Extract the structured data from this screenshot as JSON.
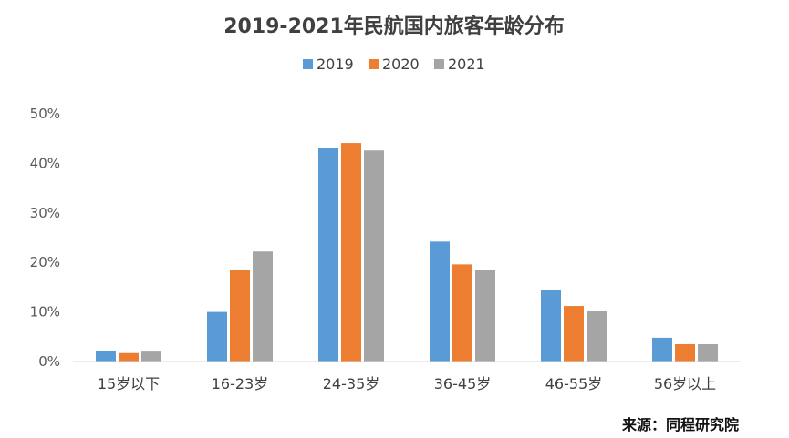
{
  "chart_data": {
    "type": "bar",
    "title": "2019-2021年民航国内旅客年龄分布",
    "categories": [
      "15岁以下",
      "16-23岁",
      "24-35岁",
      "36-45岁",
      "46-55岁",
      "56岁以上"
    ],
    "series": [
      {
        "name": "2019",
        "color": "#5B9BD5",
        "values": [
          2.2,
          10.0,
          43.2,
          24.2,
          14.4,
          4.8
        ]
      },
      {
        "name": "2020",
        "color": "#ED7D31",
        "values": [
          1.7,
          18.5,
          44.1,
          19.6,
          11.2,
          3.5
        ]
      },
      {
        "name": "2021",
        "color": "#A5A5A5",
        "values": [
          2.0,
          22.2,
          42.6,
          18.5,
          10.3,
          3.5
        ]
      }
    ],
    "ylim": [
      0,
      50
    ],
    "yticks": [
      0,
      10,
      20,
      30,
      40,
      50
    ],
    "ytick_labels": [
      "0%",
      "10%",
      "20%",
      "30%",
      "40%",
      "50%"
    ],
    "unit": "%",
    "legend_position": "top-center",
    "grid": false,
    "source": "来源：同程研究院"
  }
}
